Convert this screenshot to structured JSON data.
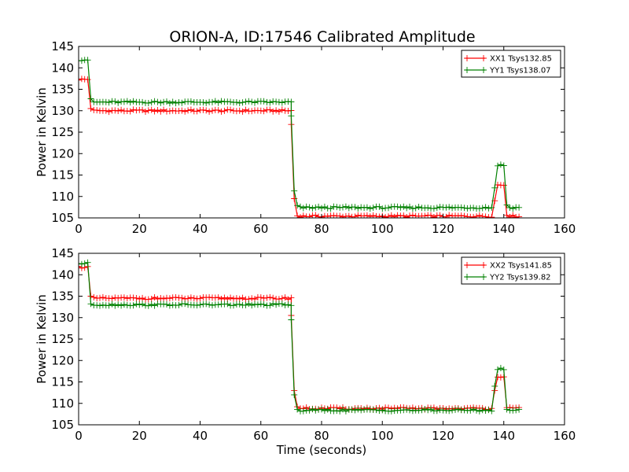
{
  "figure": {
    "title": "ORION-A, ID:17546 Calibrated Amplitude"
  },
  "chart_data": [
    {
      "type": "line",
      "title": "ORION-A, ID:17546 Calibrated Amplitude",
      "xlabel": "",
      "ylabel": "Power in Kelvin",
      "xlim": [
        0,
        160
      ],
      "ylim": [
        105,
        145
      ],
      "xticks": [
        0,
        20,
        40,
        60,
        80,
        100,
        120,
        140,
        160
      ],
      "yticks": [
        105,
        110,
        115,
        120,
        125,
        130,
        135,
        140,
        145
      ],
      "legend": "top-right",
      "series": [
        {
          "name": "XX1 Tsys132.85",
          "color": "#ff0000",
          "segments": [
            {
              "from": 0,
              "to": 3,
              "level": 137.3
            },
            {
              "at": 4,
              "value": 130.5
            },
            {
              "from": 4,
              "to": 70,
              "level": 130.0
            },
            {
              "at": 70,
              "value": 126.8
            },
            {
              "at": 71,
              "value": 109.5
            },
            {
              "at": 72,
              "value": 105.5
            },
            {
              "from": 72,
              "to": 136,
              "level": 105.4
            },
            {
              "at": 137,
              "value": 109.0
            },
            {
              "from": 138,
              "to": 140,
              "level": 112.7
            },
            {
              "at": 141,
              "value": 105.6
            },
            {
              "from": 141,
              "to": 145,
              "level": 105.4
            }
          ]
        },
        {
          "name": "YY1 Tsys138.07",
          "color": "#008000",
          "segments": [
            {
              "from": 0,
              "to": 3,
              "level": 141.9
            },
            {
              "at": 4,
              "value": 132.8
            },
            {
              "from": 4,
              "to": 70,
              "level": 132.0
            },
            {
              "at": 70,
              "value": 128.8
            },
            {
              "at": 71,
              "value": 111.3
            },
            {
              "at": 72,
              "value": 107.9
            },
            {
              "from": 72,
              "to": 136,
              "level": 107.4
            },
            {
              "at": 137,
              "value": 112.0
            },
            {
              "from": 138,
              "to": 140,
              "level": 117.3
            },
            {
              "at": 141,
              "value": 108.0
            },
            {
              "from": 141,
              "to": 145,
              "level": 107.4
            }
          ]
        }
      ]
    },
    {
      "type": "line",
      "title": "",
      "xlabel": "Time (seconds)",
      "ylabel": "Power in Kelvin",
      "xlim": [
        0,
        160
      ],
      "ylim": [
        105,
        145
      ],
      "xticks": [
        0,
        20,
        40,
        60,
        80,
        100,
        120,
        140,
        160
      ],
      "yticks": [
        105,
        110,
        115,
        120,
        125,
        130,
        135,
        140,
        145
      ],
      "legend": "top-right",
      "series": [
        {
          "name": "XX2 Tsys141.85",
          "color": "#ff0000",
          "segments": [
            {
              "from": 0,
              "to": 3,
              "level": 141.8
            },
            {
              "at": 4,
              "value": 135.0
            },
            {
              "from": 4,
              "to": 70,
              "level": 134.5
            },
            {
              "at": 70,
              "value": 130.5
            },
            {
              "at": 71,
              "value": 113.0
            },
            {
              "at": 72,
              "value": 109.2
            },
            {
              "from": 72,
              "to": 136,
              "level": 108.8
            },
            {
              "at": 137,
              "value": 113.0
            },
            {
              "from": 138,
              "to": 140,
              "level": 116.3
            },
            {
              "at": 141,
              "value": 109.0
            },
            {
              "from": 141,
              "to": 145,
              "level": 108.8
            }
          ]
        },
        {
          "name": "YY2 Tsys139.82",
          "color": "#008000",
          "segments": [
            {
              "from": 0,
              "to": 3,
              "level": 142.6
            },
            {
              "at": 4,
              "value": 133.2
            },
            {
              "from": 4,
              "to": 70,
              "level": 133.0
            },
            {
              "at": 70,
              "value": 129.5
            },
            {
              "at": 71,
              "value": 112.0
            },
            {
              "at": 72,
              "value": 108.6
            },
            {
              "from": 72,
              "to": 136,
              "level": 108.4
            },
            {
              "at": 137,
              "value": 114.0
            },
            {
              "from": 138,
              "to": 140,
              "level": 118.0
            },
            {
              "at": 141,
              "value": 108.6
            },
            {
              "from": 141,
              "to": 145,
              "level": 108.4
            }
          ]
        }
      ]
    }
  ]
}
